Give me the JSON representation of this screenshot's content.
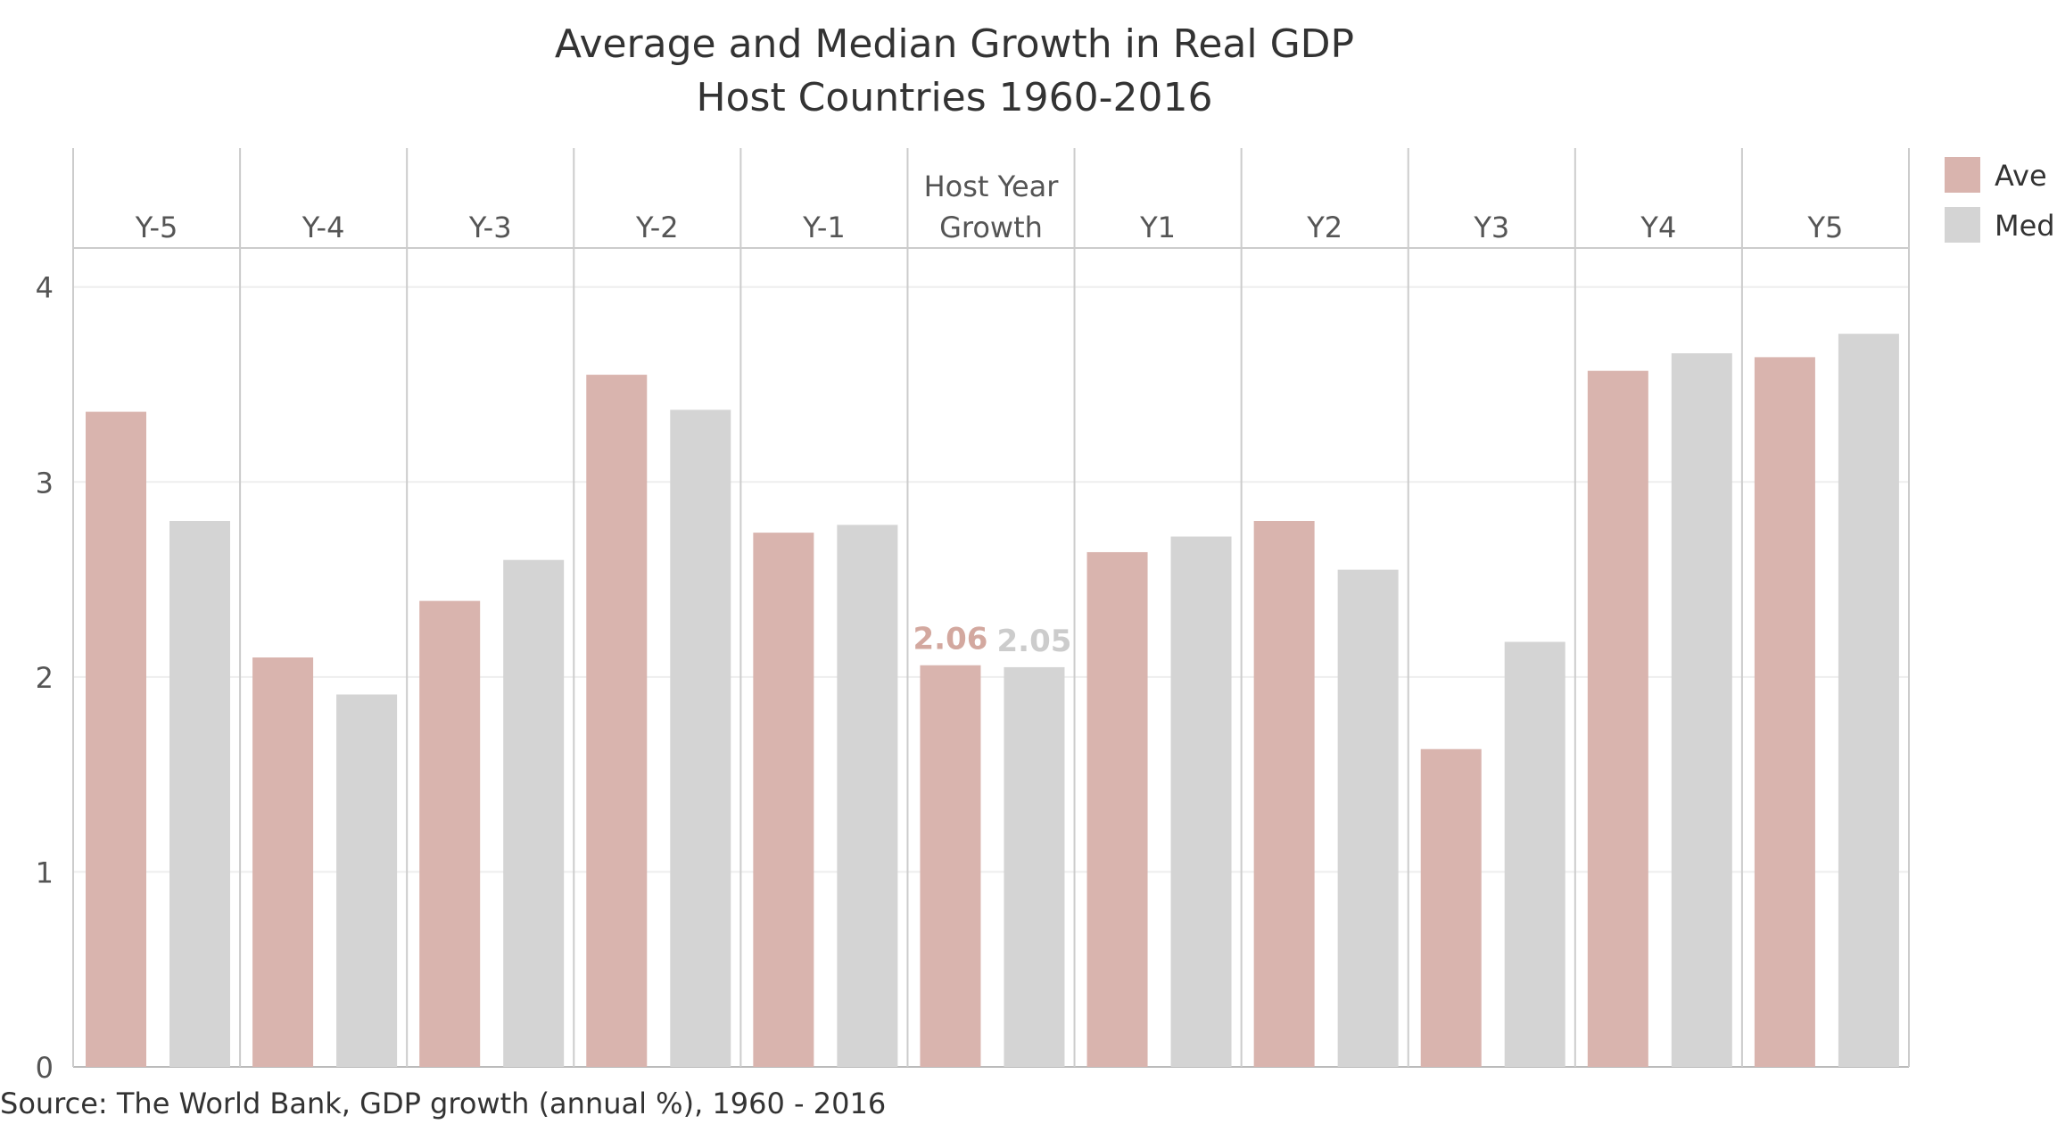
{
  "colors": {
    "ave": "#d9b4ae",
    "med": "#d4d4d4"
  },
  "chart_data": {
    "type": "bar",
    "title": "Average and Median Growth in Real GDP",
    "subtitle": "Host Countries 1960-2016",
    "xlabel": "",
    "ylabel": "",
    "ylim": [
      0,
      4.2
    ],
    "yticks": [
      {
        "value": 0,
        "label": "0"
      },
      {
        "value": 1,
        "label": "1"
      },
      {
        "value": 2,
        "label": "2"
      },
      {
        "value": 3,
        "label": "3"
      },
      {
        "value": 4,
        "label": "4"
      }
    ],
    "categories": [
      {
        "lines": [
          "Y-5"
        ]
      },
      {
        "lines": [
          "Y-4"
        ]
      },
      {
        "lines": [
          "Y-3"
        ]
      },
      {
        "lines": [
          "Y-2"
        ]
      },
      {
        "lines": [
          "Y-1"
        ]
      },
      {
        "lines": [
          "Host Year",
          "Growth"
        ]
      },
      {
        "lines": [
          "Y1"
        ]
      },
      {
        "lines": [
          "Y2"
        ]
      },
      {
        "lines": [
          "Y3"
        ]
      },
      {
        "lines": [
          "Y4"
        ]
      },
      {
        "lines": [
          "Y5"
        ]
      }
    ],
    "series": [
      {
        "name": "Ave",
        "color_key": "ave",
        "values": [
          3.36,
          2.1,
          2.39,
          3.55,
          2.74,
          2.06,
          2.64,
          2.8,
          1.63,
          3.57,
          3.64
        ]
      },
      {
        "name": "Med",
        "color_key": "med",
        "values": [
          2.8,
          1.91,
          2.6,
          3.37,
          2.78,
          2.05,
          2.72,
          2.55,
          2.18,
          3.66,
          3.76
        ]
      }
    ],
    "data_labels": [
      {
        "series": 0,
        "category": 5,
        "text": "2.06"
      },
      {
        "series": 1,
        "category": 5,
        "text": "2.05"
      }
    ],
    "legend_position": "top-right",
    "grid": true
  },
  "source": "Source: The World Bank, GDP growth (annual %), 1960 - 2016"
}
